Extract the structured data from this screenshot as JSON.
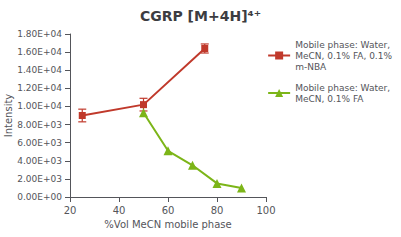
{
  "chart_data": {
    "type": "line",
    "title": "CGRP [M+4H]⁴⁺",
    "xlabel": "%Vol MeCN mobile phase",
    "ylabel": "Intensity",
    "series": [
      {
        "name": "Mobile phase: Water,\nMeCN, 0.1% FA, 0.1%\nm-NBA",
        "color": "#C0392B",
        "marker": "square",
        "x": [
          25,
          50,
          75
        ],
        "values": [
          9000,
          10200,
          16400
        ],
        "yerr": [
          700,
          700,
          500
        ]
      },
      {
        "name": "Mobile phase: Water,\nMeCN, 0.1% FA",
        "color": "#7CB518",
        "marker": "triangle",
        "x": [
          50,
          60,
          70,
          80,
          90
        ],
        "values": [
          9300,
          5100,
          3500,
          1500,
          1000
        ]
      }
    ],
    "xlim": [
      20,
      100
    ],
    "xticks": [
      20,
      40,
      60,
      80,
      100
    ],
    "ylim": [
      0,
      18000
    ],
    "yticks": [
      {
        "value": 0,
        "label": "0.00E+00"
      },
      {
        "value": 2000,
        "label": "2.00E+03"
      },
      {
        "value": 4000,
        "label": "4.00E+03"
      },
      {
        "value": 6000,
        "label": "6.00E+03"
      },
      {
        "value": 8000,
        "label": "8.00E+03"
      },
      {
        "value": 10000,
        "label": "1.00E+04"
      },
      {
        "value": 12000,
        "label": "1.20E+04"
      },
      {
        "value": 14000,
        "label": "1.40E+04"
      },
      {
        "value": 16000,
        "label": "1.60E+04"
      },
      {
        "value": 18000,
        "label": "1.80E+04"
      }
    ],
    "grid": false,
    "legend": "upper right"
  }
}
